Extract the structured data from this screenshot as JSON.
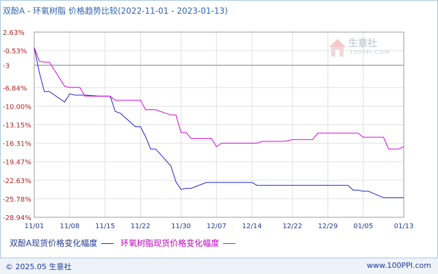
{
  "title": "双酚A - 环氧树脂 价格趋势比较",
  "date_range": "(2022-11-01 - 2023-01-13)",
  "watermark": {
    "name": "生意社",
    "url": "100PPI.COM"
  },
  "footer": {
    "copyright": "© 2025.05 生意社",
    "site": "www.100PPI.com"
  },
  "colors": {
    "series_a": "#1a1ad6",
    "series_b": "#d600d6",
    "grid": "#e0e0e0",
    "refline": "#888888"
  },
  "chart_data": {
    "type": "line",
    "xlabel": "",
    "ylabel": "",
    "x_tick_labels": [
      "11/01",
      "11/08",
      "11/15",
      "11/22",
      "11/30",
      "12/07",
      "12/14",
      "12/22",
      "12/29",
      "01/05",
      "01/13"
    ],
    "y_tick_labels": [
      "2.63%",
      "-0.53%",
      "-3",
      "-6.84%",
      "-10.00%",
      "-13.15%",
      "-16.31%",
      "-19.47%",
      "-22.63%",
      "-25.78%",
      "-28.94%"
    ],
    "ylim": [
      -28.94,
      2.63
    ],
    "reference_line": -3,
    "x": [
      "2022-11-01",
      "2022-11-02",
      "2022-11-03",
      "2022-11-04",
      "2022-11-07",
      "2022-11-08",
      "2022-11-09",
      "2022-11-10",
      "2022-11-11",
      "2022-11-14",
      "2022-11-15",
      "2022-11-16",
      "2022-11-17",
      "2022-11-18",
      "2022-11-21",
      "2022-11-22",
      "2022-11-23",
      "2022-11-24",
      "2022-11-25",
      "2022-11-28",
      "2022-11-29",
      "2022-11-30",
      "2022-12-01",
      "2022-12-02",
      "2022-12-05",
      "2022-12-06",
      "2022-12-07",
      "2022-12-08",
      "2022-12-09",
      "2022-12-12",
      "2022-12-13",
      "2022-12-14",
      "2022-12-15",
      "2022-12-16",
      "2022-12-19",
      "2022-12-20",
      "2022-12-21",
      "2022-12-22",
      "2022-12-23",
      "2022-12-26",
      "2022-12-27",
      "2022-12-28",
      "2022-12-29",
      "2022-12-30",
      "2023-01-02",
      "2023-01-03",
      "2023-01-04",
      "2023-01-05",
      "2023-01-06",
      "2023-01-09",
      "2023-01-10",
      "2023-01-11",
      "2023-01-12",
      "2023-01-13"
    ],
    "series": [
      {
        "name": "双酚A现货价格变化幅度",
        "color": "#1a1ad6",
        "values": [
          0,
          -4.2,
          -7.5,
          -7.5,
          -9.3,
          -7.9,
          -8.1,
          -8.1,
          -8.1,
          -8.3,
          -8.3,
          -8.3,
          -10.9,
          -11.2,
          -13.5,
          -13.5,
          -15.2,
          -17.3,
          -17.3,
          -20.2,
          -22.9,
          -24.2,
          -24.0,
          -24.0,
          -23.0,
          -23.0,
          -23.0,
          -23.0,
          -23.0,
          -23.0,
          -23.0,
          -23.0,
          -23.5,
          -23.5,
          -23.5,
          -23.5,
          -23.5,
          -23.5,
          -23.5,
          -23.5,
          -23.5,
          -23.5,
          -23.5,
          -23.5,
          -23.5,
          -24.3,
          -24.3,
          -24.5,
          -24.5,
          -25.6,
          -25.6,
          -25.6,
          -25.6,
          -25.6
        ]
      },
      {
        "name": "环氧树脂现货价格变化幅度",
        "color": "#d600d6",
        "values": [
          0,
          -2.3,
          -2.5,
          -2.5,
          -6.6,
          -6.8,
          -6.8,
          -6.8,
          -8.3,
          -8.3,
          -8.3,
          -8.3,
          -9.0,
          -9.0,
          -9.0,
          -9.0,
          -10.6,
          -10.6,
          -10.6,
          -11.5,
          -11.5,
          -14.5,
          -14.5,
          -15.5,
          -15.5,
          -15.5,
          -16.9,
          -16.3,
          -16.3,
          -16.3,
          -16.3,
          -16.3,
          -16.3,
          -16.0,
          -16.0,
          -16.0,
          -15.9,
          -15.7,
          -15.7,
          -15.7,
          -14.6,
          -14.6,
          -14.6,
          -14.6,
          -14.6,
          -14.6,
          -14.6,
          -15.3,
          -15.3,
          -15.3,
          -17.3,
          -17.3,
          -17.3,
          -16.9
        ]
      }
    ]
  }
}
